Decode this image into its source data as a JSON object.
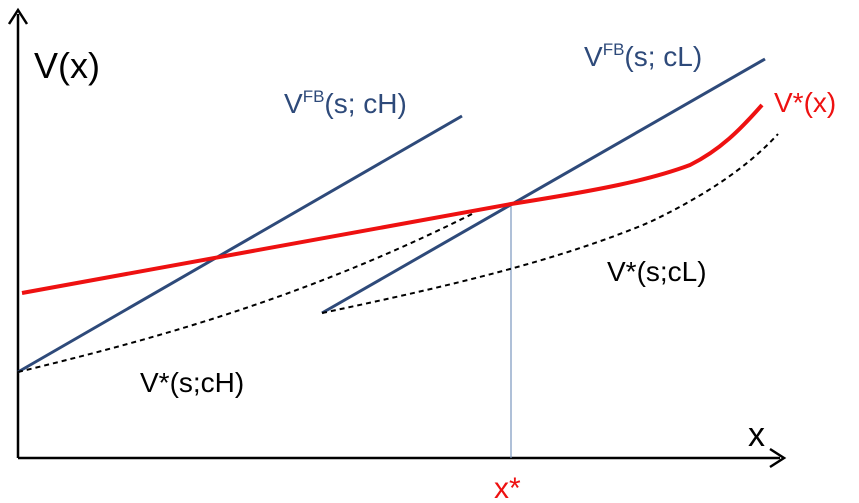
{
  "labels": {
    "y_axis": "V(x)",
    "x_axis": "x",
    "x_star": "x*",
    "vfb_ch_base": "V",
    "vfb_ch_sup": "FB",
    "vfb_ch_args": "(s; cH)",
    "vfb_cl_base": "V",
    "vfb_cl_sup": "FB",
    "vfb_cl_args": "(s; cL)",
    "vstar_x": "V*(x)",
    "vstar_cl": "V*(s;cL)",
    "vstar_ch": "V*(s;cH)"
  },
  "colors": {
    "axis": "#000000",
    "fb_line": "#2e4a7a",
    "vstar_curve": "#ee1111",
    "dashed": "#000000",
    "guide_line": "#7a97bf"
  }
}
